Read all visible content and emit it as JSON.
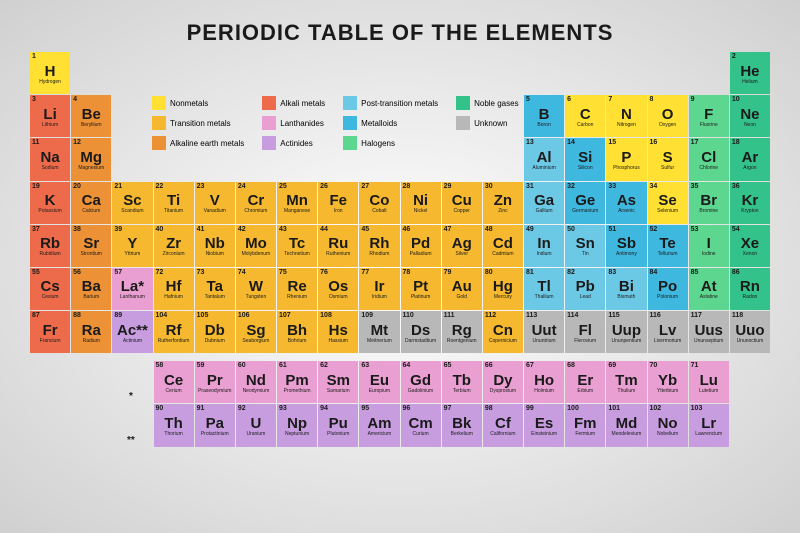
{
  "title": "PERIODIC TABLE OF THE ELEMENTS",
  "colors": {
    "nonmetal": "#ffe033",
    "transition": "#f5b82e",
    "alkaline_earth": "#ed9136",
    "alkali": "#ed6b4a",
    "lanthanide": "#e99fd1",
    "actinide": "#c79de0",
    "post_transition": "#6cc9e6",
    "metalloid": "#3fb8e0",
    "halogen": "#5dd68f",
    "noble_gas": "#33c28a",
    "unknown": "#b8b8b8",
    "background": "#e8e8e8",
    "text": "#1a1a1a"
  },
  "legend": [
    {
      "label": "Nonmetals",
      "cat": "nonmetal"
    },
    {
      "label": "Alkali metals",
      "cat": "alkali"
    },
    {
      "label": "Post-transition metals",
      "cat": "post_transition"
    },
    {
      "label": "Noble gases",
      "cat": "noble_gas"
    },
    {
      "label": "Transition metals",
      "cat": "transition"
    },
    {
      "label": "Lanthanides",
      "cat": "lanthanide"
    },
    {
      "label": "Metalloids",
      "cat": "metalloid"
    },
    {
      "label": "Unknown",
      "cat": "unknown"
    },
    {
      "label": "Alkaline earth metals",
      "cat": "alkaline_earth"
    },
    {
      "label": "Actinides",
      "cat": "actinide"
    },
    {
      "label": "Halogens",
      "cat": "halogen"
    }
  ],
  "elements": [
    {
      "n": 1,
      "s": "H",
      "nm": "Hydrogen",
      "c": "nonmetal",
      "r": 1,
      "col": 1
    },
    {
      "n": 2,
      "s": "He",
      "nm": "Helium",
      "c": "noble_gas",
      "r": 1,
      "col": 18
    },
    {
      "n": 3,
      "s": "Li",
      "nm": "Lithium",
      "c": "alkali",
      "r": 2,
      "col": 1
    },
    {
      "n": 4,
      "s": "Be",
      "nm": "Beryllium",
      "c": "alkaline_earth",
      "r": 2,
      "col": 2
    },
    {
      "n": 5,
      "s": "B",
      "nm": "Boron",
      "c": "metalloid",
      "r": 2,
      "col": 13
    },
    {
      "n": 6,
      "s": "C",
      "nm": "Carbon",
      "c": "nonmetal",
      "r": 2,
      "col": 14
    },
    {
      "n": 7,
      "s": "N",
      "nm": "Nitrogen",
      "c": "nonmetal",
      "r": 2,
      "col": 15
    },
    {
      "n": 8,
      "s": "O",
      "nm": "Oxygen",
      "c": "nonmetal",
      "r": 2,
      "col": 16
    },
    {
      "n": 9,
      "s": "F",
      "nm": "Fluorine",
      "c": "halogen",
      "r": 2,
      "col": 17
    },
    {
      "n": 10,
      "s": "Ne",
      "nm": "Neon",
      "c": "noble_gas",
      "r": 2,
      "col": 18
    },
    {
      "n": 11,
      "s": "Na",
      "nm": "Sodium",
      "c": "alkali",
      "r": 3,
      "col": 1
    },
    {
      "n": 12,
      "s": "Mg",
      "nm": "Magnesium",
      "c": "alkaline_earth",
      "r": 3,
      "col": 2
    },
    {
      "n": 13,
      "s": "Al",
      "nm": "Aluminium",
      "c": "post_transition",
      "r": 3,
      "col": 13
    },
    {
      "n": 14,
      "s": "Si",
      "nm": "Silicon",
      "c": "metalloid",
      "r": 3,
      "col": 14
    },
    {
      "n": 15,
      "s": "P",
      "nm": "Phosphorus",
      "c": "nonmetal",
      "r": 3,
      "col": 15
    },
    {
      "n": 16,
      "s": "S",
      "nm": "Sulfur",
      "c": "nonmetal",
      "r": 3,
      "col": 16
    },
    {
      "n": 17,
      "s": "Cl",
      "nm": "Chlorine",
      "c": "halogen",
      "r": 3,
      "col": 17
    },
    {
      "n": 18,
      "s": "Ar",
      "nm": "Argon",
      "c": "noble_gas",
      "r": 3,
      "col": 18
    },
    {
      "n": 19,
      "s": "K",
      "nm": "Potassium",
      "c": "alkali",
      "r": 4,
      "col": 1
    },
    {
      "n": 20,
      "s": "Ca",
      "nm": "Calcium",
      "c": "alkaline_earth",
      "r": 4,
      "col": 2
    },
    {
      "n": 21,
      "s": "Sc",
      "nm": "Scandium",
      "c": "transition",
      "r": 4,
      "col": 3
    },
    {
      "n": 22,
      "s": "Ti",
      "nm": "Titanium",
      "c": "transition",
      "r": 4,
      "col": 4
    },
    {
      "n": 23,
      "s": "V",
      "nm": "Vanadium",
      "c": "transition",
      "r": 4,
      "col": 5
    },
    {
      "n": 24,
      "s": "Cr",
      "nm": "Chromium",
      "c": "transition",
      "r": 4,
      "col": 6
    },
    {
      "n": 25,
      "s": "Mn",
      "nm": "Manganese",
      "c": "transition",
      "r": 4,
      "col": 7
    },
    {
      "n": 26,
      "s": "Fe",
      "nm": "Iron",
      "c": "transition",
      "r": 4,
      "col": 8
    },
    {
      "n": 27,
      "s": "Co",
      "nm": "Cobalt",
      "c": "transition",
      "r": 4,
      "col": 9
    },
    {
      "n": 28,
      "s": "Ni",
      "nm": "Nickel",
      "c": "transition",
      "r": 4,
      "col": 10
    },
    {
      "n": 29,
      "s": "Cu",
      "nm": "Copper",
      "c": "transition",
      "r": 4,
      "col": 11
    },
    {
      "n": 30,
      "s": "Zn",
      "nm": "Zinc",
      "c": "transition",
      "r": 4,
      "col": 12
    },
    {
      "n": 31,
      "s": "Ga",
      "nm": "Gallium",
      "c": "post_transition",
      "r": 4,
      "col": 13
    },
    {
      "n": 32,
      "s": "Ge",
      "nm": "Germanium",
      "c": "metalloid",
      "r": 4,
      "col": 14
    },
    {
      "n": 33,
      "s": "As",
      "nm": "Arsenic",
      "c": "metalloid",
      "r": 4,
      "col": 15
    },
    {
      "n": 34,
      "s": "Se",
      "nm": "Selenium",
      "c": "nonmetal",
      "r": 4,
      "col": 16
    },
    {
      "n": 35,
      "s": "Br",
      "nm": "Bromine",
      "c": "halogen",
      "r": 4,
      "col": 17
    },
    {
      "n": 36,
      "s": "Kr",
      "nm": "Krypton",
      "c": "noble_gas",
      "r": 4,
      "col": 18
    },
    {
      "n": 37,
      "s": "Rb",
      "nm": "Rubidium",
      "c": "alkali",
      "r": 5,
      "col": 1
    },
    {
      "n": 38,
      "s": "Sr",
      "nm": "Strontium",
      "c": "alkaline_earth",
      "r": 5,
      "col": 2
    },
    {
      "n": 39,
      "s": "Y",
      "nm": "Yttrium",
      "c": "transition",
      "r": 5,
      "col": 3
    },
    {
      "n": 40,
      "s": "Zr",
      "nm": "Zirconium",
      "c": "transition",
      "r": 5,
      "col": 4
    },
    {
      "n": 41,
      "s": "Nb",
      "nm": "Niobium",
      "c": "transition",
      "r": 5,
      "col": 5
    },
    {
      "n": 42,
      "s": "Mo",
      "nm": "Molybdenum",
      "c": "transition",
      "r": 5,
      "col": 6
    },
    {
      "n": 43,
      "s": "Tc",
      "nm": "Technetium",
      "c": "transition",
      "r": 5,
      "col": 7
    },
    {
      "n": 44,
      "s": "Ru",
      "nm": "Ruthenium",
      "c": "transition",
      "r": 5,
      "col": 8
    },
    {
      "n": 45,
      "s": "Rh",
      "nm": "Rhodium",
      "c": "transition",
      "r": 5,
      "col": 9
    },
    {
      "n": 46,
      "s": "Pd",
      "nm": "Palladium",
      "c": "transition",
      "r": 5,
      "col": 10
    },
    {
      "n": 47,
      "s": "Ag",
      "nm": "Silver",
      "c": "transition",
      "r": 5,
      "col": 11
    },
    {
      "n": 48,
      "s": "Cd",
      "nm": "Cadmium",
      "c": "transition",
      "r": 5,
      "col": 12
    },
    {
      "n": 49,
      "s": "In",
      "nm": "Indium",
      "c": "post_transition",
      "r": 5,
      "col": 13
    },
    {
      "n": 50,
      "s": "Sn",
      "nm": "Tin",
      "c": "post_transition",
      "r": 5,
      "col": 14
    },
    {
      "n": 51,
      "s": "Sb",
      "nm": "Antimony",
      "c": "metalloid",
      "r": 5,
      "col": 15
    },
    {
      "n": 52,
      "s": "Te",
      "nm": "Tellurium",
      "c": "metalloid",
      "r": 5,
      "col": 16
    },
    {
      "n": 53,
      "s": "I",
      "nm": "Iodine",
      "c": "halogen",
      "r": 5,
      "col": 17
    },
    {
      "n": 54,
      "s": "Xe",
      "nm": "Xenon",
      "c": "noble_gas",
      "r": 5,
      "col": 18
    },
    {
      "n": 55,
      "s": "Cs",
      "nm": "Cesium",
      "c": "alkali",
      "r": 6,
      "col": 1
    },
    {
      "n": 56,
      "s": "Ba",
      "nm": "Barium",
      "c": "alkaline_earth",
      "r": 6,
      "col": 2
    },
    {
      "n": 57,
      "s": "La",
      "nm": "Lanthanum",
      "c": "lanthanide",
      "r": 6,
      "col": 3,
      "suffix": "*"
    },
    {
      "n": 72,
      "s": "Hf",
      "nm": "Hafnium",
      "c": "transition",
      "r": 6,
      "col": 4
    },
    {
      "n": 73,
      "s": "Ta",
      "nm": "Tantalum",
      "c": "transition",
      "r": 6,
      "col": 5
    },
    {
      "n": 74,
      "s": "W",
      "nm": "Tungsten",
      "c": "transition",
      "r": 6,
      "col": 6
    },
    {
      "n": 75,
      "s": "Re",
      "nm": "Rhenium",
      "c": "transition",
      "r": 6,
      "col": 7
    },
    {
      "n": 76,
      "s": "Os",
      "nm": "Osmium",
      "c": "transition",
      "r": 6,
      "col": 8
    },
    {
      "n": 77,
      "s": "Ir",
      "nm": "Iridium",
      "c": "transition",
      "r": 6,
      "col": 9
    },
    {
      "n": 78,
      "s": "Pt",
      "nm": "Platinum",
      "c": "transition",
      "r": 6,
      "col": 10
    },
    {
      "n": 79,
      "s": "Au",
      "nm": "Gold",
      "c": "transition",
      "r": 6,
      "col": 11
    },
    {
      "n": 80,
      "s": "Hg",
      "nm": "Mercury",
      "c": "transition",
      "r": 6,
      "col": 12
    },
    {
      "n": 81,
      "s": "Tl",
      "nm": "Thallium",
      "c": "post_transition",
      "r": 6,
      "col": 13
    },
    {
      "n": 82,
      "s": "Pb",
      "nm": "Lead",
      "c": "post_transition",
      "r": 6,
      "col": 14
    },
    {
      "n": 83,
      "s": "Bi",
      "nm": "Bismuth",
      "c": "post_transition",
      "r": 6,
      "col": 15
    },
    {
      "n": 84,
      "s": "Po",
      "nm": "Polonium",
      "c": "metalloid",
      "r": 6,
      "col": 16
    },
    {
      "n": 85,
      "s": "At",
      "nm": "Astatine",
      "c": "halogen",
      "r": 6,
      "col": 17
    },
    {
      "n": 86,
      "s": "Rn",
      "nm": "Radon",
      "c": "noble_gas",
      "r": 6,
      "col": 18
    },
    {
      "n": 87,
      "s": "Fr",
      "nm": "Francium",
      "c": "alkali",
      "r": 7,
      "col": 1
    },
    {
      "n": 88,
      "s": "Ra",
      "nm": "Radium",
      "c": "alkaline_earth",
      "r": 7,
      "col": 2
    },
    {
      "n": 89,
      "s": "Ac",
      "nm": "Actinium",
      "c": "actinide",
      "r": 7,
      "col": 3,
      "suffix": "**"
    },
    {
      "n": 104,
      "s": "Rf",
      "nm": "Rutherfordium",
      "c": "transition",
      "r": 7,
      "col": 4
    },
    {
      "n": 105,
      "s": "Db",
      "nm": "Dubnium",
      "c": "transition",
      "r": 7,
      "col": 5
    },
    {
      "n": 106,
      "s": "Sg",
      "nm": "Seaborgium",
      "c": "transition",
      "r": 7,
      "col": 6
    },
    {
      "n": 107,
      "s": "Bh",
      "nm": "Bohrium",
      "c": "transition",
      "r": 7,
      "col": 7
    },
    {
      "n": 108,
      "s": "Hs",
      "nm": "Hassium",
      "c": "transition",
      "r": 7,
      "col": 8
    },
    {
      "n": 109,
      "s": "Mt",
      "nm": "Meitnerium",
      "c": "unknown",
      "r": 7,
      "col": 9
    },
    {
      "n": 110,
      "s": "Ds",
      "nm": "Darmstadtium",
      "c": "unknown",
      "r": 7,
      "col": 10
    },
    {
      "n": 111,
      "s": "Rg",
      "nm": "Roentgenium",
      "c": "unknown",
      "r": 7,
      "col": 11
    },
    {
      "n": 112,
      "s": "Cn",
      "nm": "Copernicium",
      "c": "transition",
      "r": 7,
      "col": 12
    },
    {
      "n": 113,
      "s": "Uut",
      "nm": "Ununtrium",
      "c": "unknown",
      "r": 7,
      "col": 13
    },
    {
      "n": 114,
      "s": "Fl",
      "nm": "Flerovium",
      "c": "unknown",
      "r": 7,
      "col": 14
    },
    {
      "n": 115,
      "s": "Uup",
      "nm": "Ununpentium",
      "c": "unknown",
      "r": 7,
      "col": 15
    },
    {
      "n": 116,
      "s": "Lv",
      "nm": "Livermorium",
      "c": "unknown",
      "r": 7,
      "col": 16
    },
    {
      "n": 117,
      "s": "Uus",
      "nm": "Ununseptium",
      "c": "unknown",
      "r": 7,
      "col": 17
    },
    {
      "n": 118,
      "s": "Uuo",
      "nm": "Ununoctium",
      "c": "unknown",
      "r": 7,
      "col": 18
    }
  ],
  "lanthanides": [
    {
      "n": 58,
      "s": "Ce",
      "nm": "Cerium",
      "c": "lanthanide"
    },
    {
      "n": 59,
      "s": "Pr",
      "nm": "Praseodymium",
      "c": "lanthanide"
    },
    {
      "n": 60,
      "s": "Nd",
      "nm": "Neodymium",
      "c": "lanthanide"
    },
    {
      "n": 61,
      "s": "Pm",
      "nm": "Promethium",
      "c": "lanthanide"
    },
    {
      "n": 62,
      "s": "Sm",
      "nm": "Samarium",
      "c": "lanthanide"
    },
    {
      "n": 63,
      "s": "Eu",
      "nm": "Europium",
      "c": "lanthanide"
    },
    {
      "n": 64,
      "s": "Gd",
      "nm": "Gadolinium",
      "c": "lanthanide"
    },
    {
      "n": 65,
      "s": "Tb",
      "nm": "Terbium",
      "c": "lanthanide"
    },
    {
      "n": 66,
      "s": "Dy",
      "nm": "Dysprosium",
      "c": "lanthanide"
    },
    {
      "n": 67,
      "s": "Ho",
      "nm": "Holmium",
      "c": "lanthanide"
    },
    {
      "n": 68,
      "s": "Er",
      "nm": "Erbium",
      "c": "lanthanide"
    },
    {
      "n": 69,
      "s": "Tm",
      "nm": "Thulium",
      "c": "lanthanide"
    },
    {
      "n": 70,
      "s": "Yb",
      "nm": "Ytterbium",
      "c": "lanthanide"
    },
    {
      "n": 71,
      "s": "Lu",
      "nm": "Lutetium",
      "c": "lanthanide"
    }
  ],
  "actinides": [
    {
      "n": 90,
      "s": "Th",
      "nm": "Thorium",
      "c": "actinide"
    },
    {
      "n": 91,
      "s": "Pa",
      "nm": "Protactinium",
      "c": "actinide"
    },
    {
      "n": 92,
      "s": "U",
      "nm": "Uranium",
      "c": "actinide"
    },
    {
      "n": 93,
      "s": "Np",
      "nm": "Neptunium",
      "c": "actinide"
    },
    {
      "n": 94,
      "s": "Pu",
      "nm": "Plutonium",
      "c": "actinide"
    },
    {
      "n": 95,
      "s": "Am",
      "nm": "Americium",
      "c": "actinide"
    },
    {
      "n": 96,
      "s": "Cm",
      "nm": "Curium",
      "c": "actinide"
    },
    {
      "n": 97,
      "s": "Bk",
      "nm": "Berkelium",
      "c": "actinide"
    },
    {
      "n": 98,
      "s": "Cf",
      "nm": "Californium",
      "c": "actinide"
    },
    {
      "n": 99,
      "s": "Es",
      "nm": "Einsteinium",
      "c": "actinide"
    },
    {
      "n": 100,
      "s": "Fm",
      "nm": "Fermium",
      "c": "actinide"
    },
    {
      "n": 101,
      "s": "Md",
      "nm": "Mendelevium",
      "c": "actinide"
    },
    {
      "n": 102,
      "s": "No",
      "nm": "Nobelium",
      "c": "actinide"
    },
    {
      "n": 103,
      "s": "Lr",
      "nm": "Lawrencium",
      "c": "actinide"
    }
  ],
  "markers": {
    "lanth": "*",
    "act": "**"
  }
}
